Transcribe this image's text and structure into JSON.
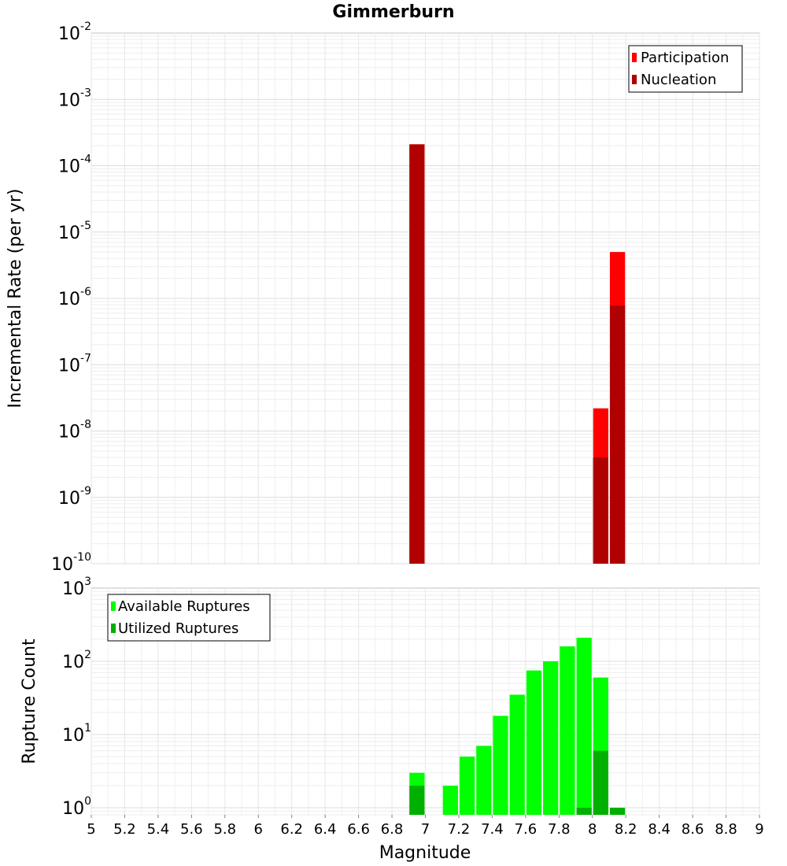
{
  "chart_data": [
    {
      "type": "bar",
      "title": "Gimmerburn",
      "ylabel": "Incremental Rate (per yr)",
      "xlabel": "",
      "xlim": [
        5,
        9
      ],
      "ylim": [
        1e-10,
        0.01
      ],
      "yscale": "log",
      "grid": true,
      "legend_position": "top-right",
      "legend": [
        "Participation",
        "Nucleation"
      ],
      "colors": {
        "Participation": "#ff0000",
        "Nucleation": "#b00000"
      },
      "bin_width": 0.1,
      "series": [
        {
          "name": "Participation",
          "x": [
            6.95,
            8.05,
            8.15
          ],
          "values": [
            0.00021,
            2.2e-08,
            5e-06
          ]
        },
        {
          "name": "Nucleation",
          "x": [
            6.95,
            8.05,
            8.15
          ],
          "values": [
            0.00021,
            4e-09,
            7.8e-07
          ]
        }
      ]
    },
    {
      "type": "bar",
      "title": "",
      "ylabel": "Rupture Count",
      "xlabel": "Magnitude",
      "xlim": [
        5,
        9
      ],
      "ylim": [
        0.8,
        1000
      ],
      "yscale": "log",
      "grid": true,
      "legend_position": "top-left",
      "legend": [
        "Available Ruptures",
        "Utilized Ruptures"
      ],
      "colors": {
        "Available Ruptures": "#00ff00",
        "Utilized Ruptures": "#00b000"
      },
      "bin_width": 0.1,
      "series": [
        {
          "name": "Available Ruptures",
          "x": [
            6.95,
            7.15,
            7.25,
            7.35,
            7.45,
            7.55,
            7.65,
            7.75,
            7.85,
            7.95,
            8.05
          ],
          "values": [
            3,
            2,
            5,
            7,
            18,
            35,
            75,
            100,
            160,
            210,
            60
          ]
        },
        {
          "name": "Utilized Ruptures",
          "x": [
            6.95,
            7.95,
            8.05,
            8.15
          ],
          "values": [
            2,
            1,
            6,
            1
          ]
        }
      ]
    }
  ],
  "xticks": [
    "5",
    "5.2",
    "5.4",
    "5.6",
    "5.8",
    "6",
    "6.2",
    "6.4",
    "6.6",
    "6.8",
    "7",
    "7.2",
    "7.4",
    "7.6",
    "7.8",
    "8",
    "8.2",
    "8.4",
    "8.6",
    "8.8",
    "9"
  ],
  "top_yticks": [
    {
      "base": "10",
      "exp": "-2"
    },
    {
      "base": "10",
      "exp": "-3"
    },
    {
      "base": "10",
      "exp": "-4"
    },
    {
      "base": "10",
      "exp": "-5"
    },
    {
      "base": "10",
      "exp": "-6"
    },
    {
      "base": "10",
      "exp": "-7"
    },
    {
      "base": "10",
      "exp": "-8"
    },
    {
      "base": "10",
      "exp": "-9"
    },
    {
      "base": "10",
      "exp": "-10"
    }
  ],
  "bottom_yticks": [
    {
      "base": "10",
      "exp": "3"
    },
    {
      "base": "10",
      "exp": "2"
    },
    {
      "base": "10",
      "exp": "1"
    },
    {
      "base": "10",
      "exp": "0"
    }
  ]
}
